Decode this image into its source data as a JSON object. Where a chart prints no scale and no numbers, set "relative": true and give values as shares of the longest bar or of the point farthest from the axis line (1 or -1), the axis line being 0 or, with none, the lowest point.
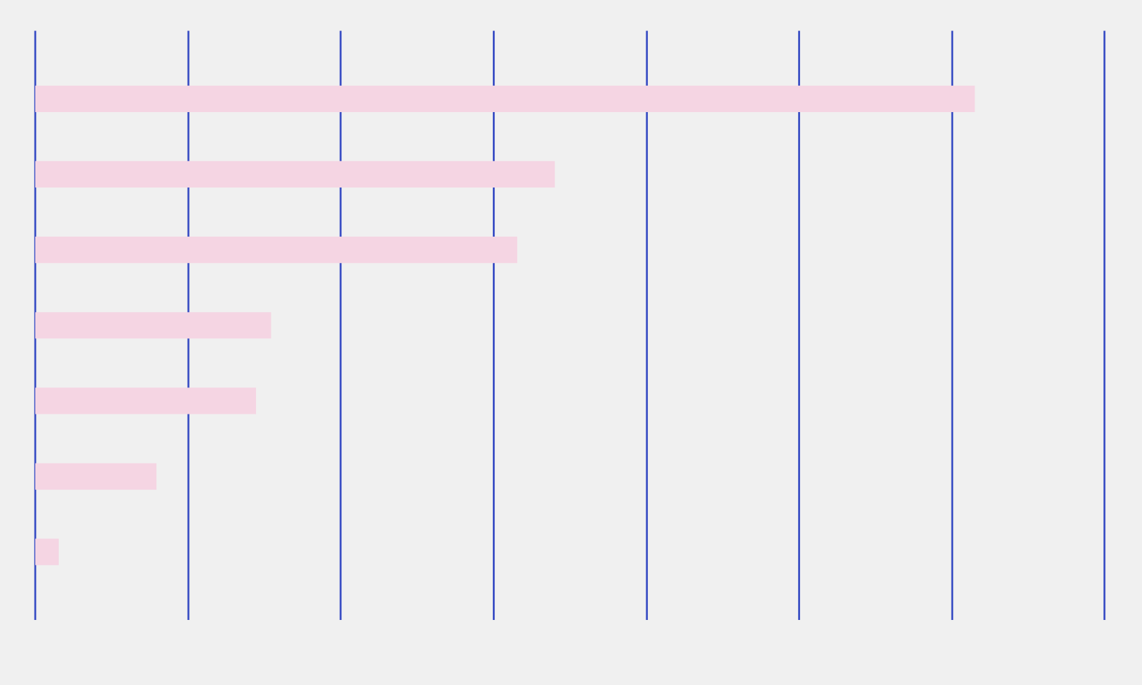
{
  "chart_data": {
    "type": "bar",
    "orientation": "horizontal",
    "relative": true,
    "categories": [
      null,
      null,
      null,
      null,
      null,
      null,
      null
    ],
    "values": [
      1,
      0.553,
      0.513,
      0.251,
      0.235,
      0.129,
      0.025
    ],
    "color": "#f5d5e3",
    "tick_labels": false,
    "ref_lines": [
      {
        "axis": "x",
        "value": 0,
        "color": "#3a4ec4"
      },
      {
        "axis": "x",
        "value": 0.163,
        "color": "#3a4ec4"
      },
      {
        "axis": "x",
        "value": 0.325,
        "color": "#3a4ec4"
      },
      {
        "axis": "x",
        "value": 0.488,
        "color": "#3a4ec4"
      },
      {
        "axis": "x",
        "value": 0.651,
        "color": "#3a4ec4"
      },
      {
        "axis": "x",
        "value": 0.813,
        "color": "#3a4ec4"
      },
      {
        "axis": "x",
        "value": 0.976,
        "color": "#3a4ec4"
      },
      {
        "axis": "x",
        "value": 1.138,
        "color": "#3a4ec4"
      }
    ]
  }
}
